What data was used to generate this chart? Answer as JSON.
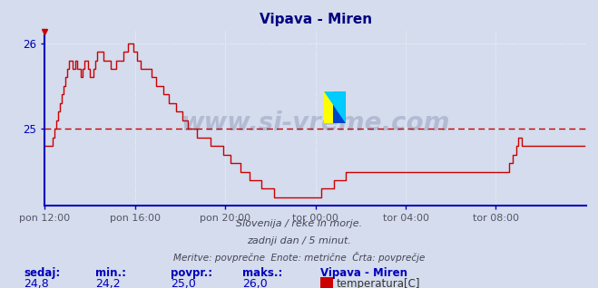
{
  "title": "Vipava - Miren",
  "title_color": "#000080",
  "bg_color": "#d4dced",
  "plot_bg_color": "#d4dced",
  "line_color": "#cc0000",
  "avg_line_color": "#cc0000",
  "avg_value": 25.0,
  "ymin": 24.1,
  "ymax": 26.15,
  "yticks": [
    25,
    26
  ],
  "xlabel_color": "#555566",
  "grid_color": "#ffffff",
  "axis_color": "#0000bb",
  "watermark": "www.si-vreme.com",
  "watermark_color": "#3a4a7a",
  "sub_text1": "Slovenija / reke in morje.",
  "sub_text2": "zadnji dan / 5 minut.",
  "sub_text3": "Meritve: povprečne  Enote: metrične  Črta: povprečje",
  "footer_labels": [
    "sedaj:",
    "min.:",
    "povpr.:",
    "maks.:"
  ],
  "footer_values": [
    "24,8",
    "24,2",
    "25,0",
    "26,0"
  ],
  "footer_station": "Vipava - Miren",
  "footer_series": "temperatura[C]",
  "xtick_labels": [
    "pon 12:00",
    "pon 16:00",
    "pon 20:00",
    "tor 00:00",
    "tor 04:00",
    "tor 08:00"
  ],
  "xtick_positions": [
    0,
    48,
    96,
    144,
    192,
    240
  ],
  "total_points": 288,
  "temperature_data": [
    24.8,
    24.8,
    24.8,
    24.8,
    24.9,
    25.0,
    25.1,
    25.2,
    25.3,
    25.4,
    25.5,
    25.6,
    25.7,
    25.8,
    25.8,
    25.7,
    25.8,
    25.7,
    25.7,
    25.6,
    25.7,
    25.8,
    25.8,
    25.7,
    25.6,
    25.6,
    25.7,
    25.8,
    25.9,
    25.9,
    25.9,
    25.8,
    25.8,
    25.8,
    25.8,
    25.7,
    25.7,
    25.7,
    25.8,
    25.8,
    25.8,
    25.8,
    25.9,
    25.9,
    26.0,
    26.0,
    26.0,
    25.9,
    25.9,
    25.8,
    25.8,
    25.7,
    25.7,
    25.7,
    25.7,
    25.7,
    25.7,
    25.6,
    25.6,
    25.5,
    25.5,
    25.5,
    25.5,
    25.4,
    25.4,
    25.4,
    25.3,
    25.3,
    25.3,
    25.3,
    25.2,
    25.2,
    25.2,
    25.1,
    25.1,
    25.1,
    25.0,
    25.0,
    25.0,
    25.0,
    25.0,
    24.9,
    24.9,
    24.9,
    24.9,
    24.9,
    24.9,
    24.9,
    24.8,
    24.8,
    24.8,
    24.8,
    24.8,
    24.8,
    24.8,
    24.7,
    24.7,
    24.7,
    24.7,
    24.6,
    24.6,
    24.6,
    24.6,
    24.6,
    24.5,
    24.5,
    24.5,
    24.5,
    24.5,
    24.4,
    24.4,
    24.4,
    24.4,
    24.4,
    24.4,
    24.3,
    24.3,
    24.3,
    24.3,
    24.3,
    24.3,
    24.3,
    24.2,
    24.2,
    24.2,
    24.2,
    24.2,
    24.2,
    24.2,
    24.2,
    24.2,
    24.2,
    24.2,
    24.2,
    24.2,
    24.2,
    24.2,
    24.2,
    24.2,
    24.2,
    24.2,
    24.2,
    24.2,
    24.2,
    24.2,
    24.2,
    24.2,
    24.3,
    24.3,
    24.3,
    24.3,
    24.3,
    24.3,
    24.3,
    24.4,
    24.4,
    24.4,
    24.4,
    24.4,
    24.4,
    24.5,
    24.5,
    24.5,
    24.5,
    24.5,
    24.5,
    24.5,
    24.5,
    24.5,
    24.5,
    24.5,
    24.5,
    24.5,
    24.5,
    24.5,
    24.5,
    24.5,
    24.5,
    24.5,
    24.5,
    24.5,
    24.5,
    24.5,
    24.5,
    24.5,
    24.5,
    24.5,
    24.5,
    24.5,
    24.5,
    24.5,
    24.5,
    24.5,
    24.5,
    24.5,
    24.5,
    24.5,
    24.5,
    24.5,
    24.5,
    24.5,
    24.5,
    24.5,
    24.5,
    24.5,
    24.5,
    24.5,
    24.5,
    24.5,
    24.5,
    24.5,
    24.5,
    24.5,
    24.5,
    24.5,
    24.5,
    24.5,
    24.5,
    24.5,
    24.5,
    24.5,
    24.5,
    24.5,
    24.5,
    24.5,
    24.5,
    24.5,
    24.5,
    24.5,
    24.5,
    24.5,
    24.5,
    24.5,
    24.5,
    24.5,
    24.5,
    24.5,
    24.5,
    24.5,
    24.5,
    24.5,
    24.5,
    24.5,
    24.5,
    24.5,
    24.5,
    24.5,
    24.6,
    24.6,
    24.7,
    24.7,
    24.8,
    24.9,
    24.9,
    24.8,
    24.8,
    24.8,
    24.8,
    24.8,
    24.8,
    24.8,
    24.8,
    24.8,
    24.8,
    24.8,
    24.8,
    24.8,
    24.8,
    24.8,
    24.8,
    24.8,
    24.8,
    24.8,
    24.8,
    24.8,
    24.8,
    24.8,
    24.8,
    24.8
  ]
}
